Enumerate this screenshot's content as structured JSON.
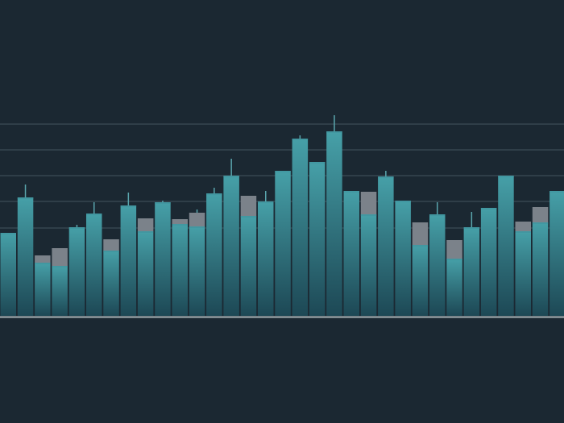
{
  "chart_data": {
    "type": "candlestick",
    "close": [
      10.3,
      14.7,
      6.6,
      6.2,
      11.0,
      12.7,
      8.1,
      13.7,
      10.5,
      14.1,
      11.4,
      11.1,
      15.2,
      17.4,
      12.4,
      14.2,
      18.0,
      22.0,
      19.1,
      22.9,
      15.5,
      12.6,
      17.3,
      14.3,
      8.8,
      12.6,
      7.1,
      11.0,
      13.4,
      17.4,
      10.5,
      11.6,
      15.5
    ],
    "open": [
      null,
      null,
      7.5,
      8.4,
      null,
      null,
      9.5,
      null,
      12.1,
      null,
      12.0,
      12.8,
      null,
      null,
      14.9,
      null,
      null,
      null,
      null,
      null,
      null,
      15.4,
      null,
      null,
      11.6,
      null,
      9.4,
      null,
      null,
      null,
      11.7,
      13.5,
      null
    ],
    "high": [
      null,
      16.3,
      null,
      null,
      11.3,
      14.1,
      null,
      15.3,
      null,
      14.3,
      null,
      13.2,
      15.9,
      19.5,
      null,
      15.5,
      null,
      22.4,
      null,
      24.9,
      null,
      null,
      18.0,
      null,
      null,
      14.1,
      null,
      12.9,
      null,
      null,
      null,
      null,
      null
    ],
    "ylim": [
      0,
      39.2
    ],
    "yticks": [
      10.9,
      14.2,
      17.4,
      20.6,
      23.8
    ],
    "grid": true,
    "up_color": "#3f929c",
    "down_color": "#7b828a"
  }
}
